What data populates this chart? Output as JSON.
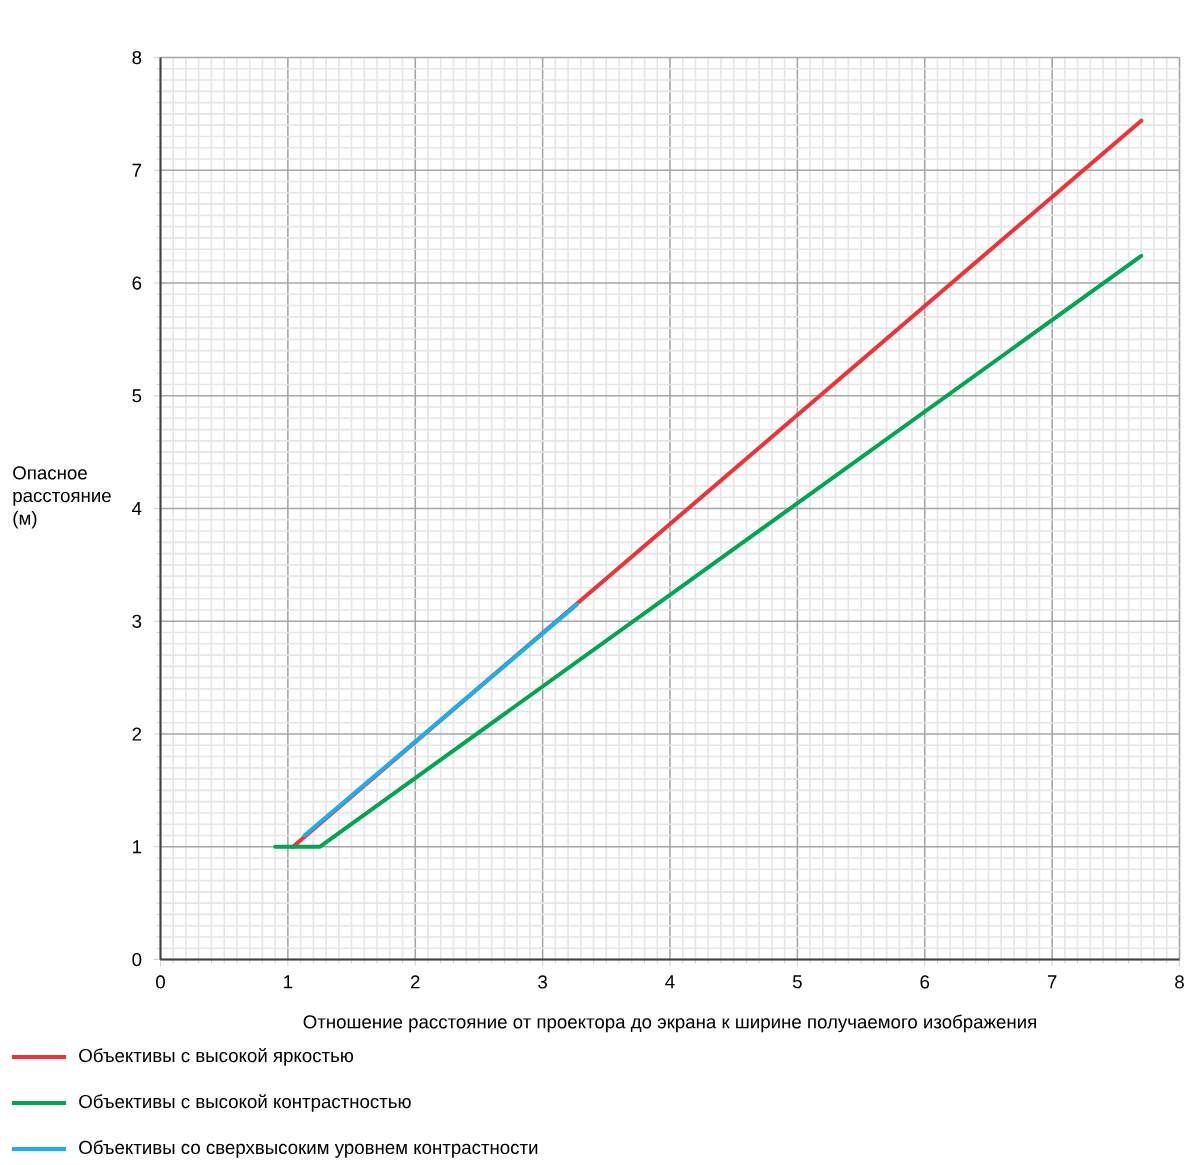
{
  "chart_data": {
    "type": "line",
    "xlabel": "Отношение расстояние от проектора до экрана к ширине получаемого изображения",
    "ylabel": "Опасное расстояние (м)",
    "xlim": [
      0,
      8
    ],
    "ylim": [
      0,
      8
    ],
    "xticks": [
      0,
      1,
      2,
      3,
      4,
      5,
      6,
      7,
      8
    ],
    "yticks": [
      0,
      1,
      2,
      3,
      4,
      5,
      6,
      7,
      8
    ],
    "grid": true,
    "legend": "bottom",
    "marker": "none",
    "line_style": "solid",
    "series": [
      {
        "name": "Объективы с высокой яркостью",
        "color": "#ee3338",
        "x": [
          1.04,
          7.7
        ],
        "values": [
          1.0,
          7.44
        ]
      },
      {
        "name": "Объективы с высокой контрастностью",
        "color": "#00a651",
        "x": [
          0.9,
          1.25,
          7.7
        ],
        "values": [
          1.0,
          1.0,
          6.24
        ]
      },
      {
        "name": "Объективы со сверхвысоким уровнем контрастности",
        "color": "#1ab0ec",
        "x": [
          1.13,
          3.27
        ],
        "values": [
          1.1,
          3.15
        ]
      }
    ]
  }
}
